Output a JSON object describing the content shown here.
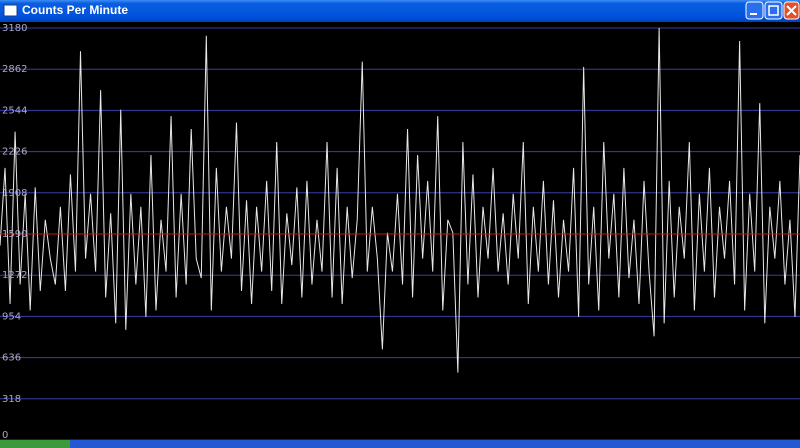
{
  "chart_data": {
    "type": "line",
    "title": "Counts Per Minute",
    "ylim": [
      0,
      3180
    ],
    "yticks": [
      0,
      318,
      636,
      954,
      1272,
      1590,
      1908,
      2226,
      2544,
      2862,
      3180
    ],
    "grid": true,
    "grid_color": "#3c3ca8",
    "line_color": "#e8e8e8",
    "hline": 1590,
    "hline_color": "#c01818",
    "values": [
      1500,
      2100,
      1050,
      2380,
      1200,
      1900,
      1000,
      1950,
      1150,
      1700,
      1400,
      1200,
      1800,
      1150,
      2050,
      1300,
      3000,
      1400,
      1900,
      1300,
      2700,
      1100,
      1750,
      900,
      2550,
      850,
      1900,
      1200,
      1800,
      950,
      2200,
      1000,
      1700,
      1300,
      2500,
      1100,
      1900,
      1200,
      2400,
      1400,
      1250,
      3120,
      1000,
      2100,
      1300,
      1800,
      1400,
      2450,
      1150,
      1850,
      1050,
      1800,
      1300,
      2000,
      1150,
      2300,
      1050,
      1750,
      1350,
      1950,
      1100,
      2000,
      1200,
      1700,
      1300,
      2300,
      1100,
      2100,
      1050,
      1800,
      1250,
      1700,
      2920,
      1300,
      1800,
      1400,
      700,
      1600,
      1300,
      1900,
      1200,
      2400,
      1100,
      2200,
      1400,
      2000,
      1300,
      2500,
      1000,
      1700,
      1600,
      520,
      2300,
      1200,
      2050,
      1100,
      1800,
      1400,
      2100,
      1300,
      1750,
      1200,
      1900,
      1400,
      2300,
      1050,
      1800,
      1300,
      2000,
      1200,
      1850,
      1100,
      1700,
      1300,
      2100,
      950,
      2880,
      1200,
      1800,
      1000,
      2300,
      1400,
      1900,
      1100,
      2100,
      1250,
      1700,
      1050,
      2000,
      1300,
      800,
      3180,
      900,
      2000,
      1100,
      1800,
      1400,
      2300,
      1000,
      1900,
      1300,
      2100,
      1100,
      1800,
      1400,
      2000,
      1200,
      3080,
      1000,
      1900,
      1300,
      2600,
      900,
      1800,
      1400,
      2000,
      1200,
      1700,
      950,
      2200
    ]
  }
}
